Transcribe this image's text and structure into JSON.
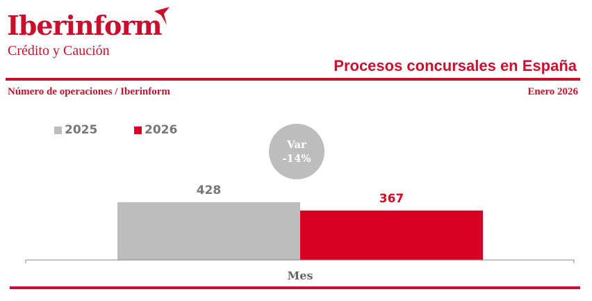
{
  "logo": {
    "name": "Iberinform",
    "tagline": "Crédito y Caución"
  },
  "header": {
    "title": "Procesos concursales en España",
    "subtitle": "Número de operaciones / Iberinform",
    "date": "Enero 2026"
  },
  "colors": {
    "brand": "#c8102e",
    "series_2025": "#bdbdbd",
    "series_2026": "#d90026"
  },
  "chart_data": {
    "type": "bar",
    "categories": [
      "Mes"
    ],
    "series": [
      {
        "name": "2025",
        "values": [
          428
        ]
      },
      {
        "name": "2026",
        "values": [
          367
        ]
      }
    ],
    "legend": "top-left",
    "grid": false,
    "ylim": [
      0,
      428
    ],
    "annotation": {
      "label": "Var",
      "value": "-14%"
    }
  }
}
